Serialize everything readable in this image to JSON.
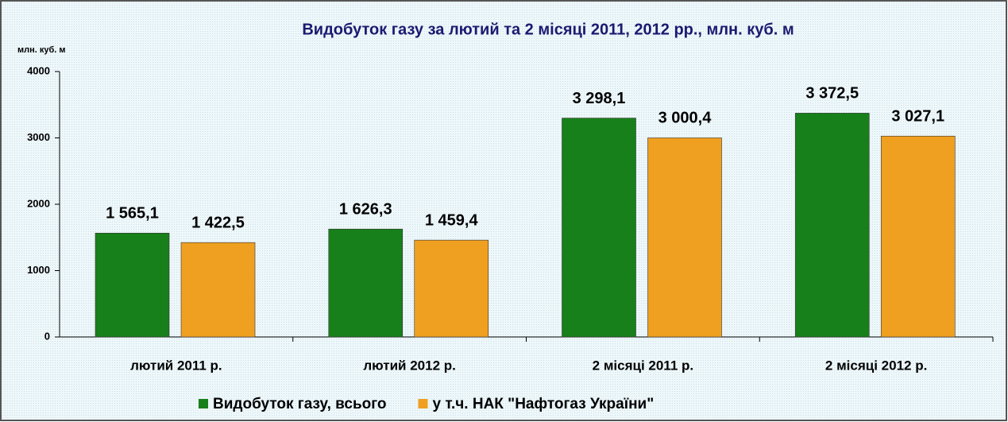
{
  "chart_data": {
    "type": "bar",
    "title": "Видобуток газу за лютий та 2 місяці 2011, 2012 рр.,  млн. куб. м",
    "y_label": "млн. куб. м",
    "categories": [
      "лютий 2011 р.",
      "лютий 2012 р.",
      "2 місяці 2011 р.",
      "2 місяці 2012 р."
    ],
    "series": [
      {
        "name": "Видобуток газу, всього",
        "color": "#17801a",
        "values": [
          1565.1,
          1626.3,
          3298.1,
          3372.5
        ],
        "value_labels": [
          "1 565,1",
          "1 626,3",
          "3 298,1",
          "3 372,5"
        ]
      },
      {
        "name": "у т.ч. НАК \"Нафтогаз України\"",
        "color": "#f0a020",
        "values": [
          1422.5,
          1459.4,
          3000.4,
          3027.1
        ],
        "value_labels": [
          "1 422,5",
          "1 459,4",
          "3 000,4",
          "3 027,1"
        ]
      }
    ],
    "ylim": [
      0,
      4000
    ],
    "yticks": [
      0,
      1000,
      2000,
      3000,
      4000
    ]
  }
}
